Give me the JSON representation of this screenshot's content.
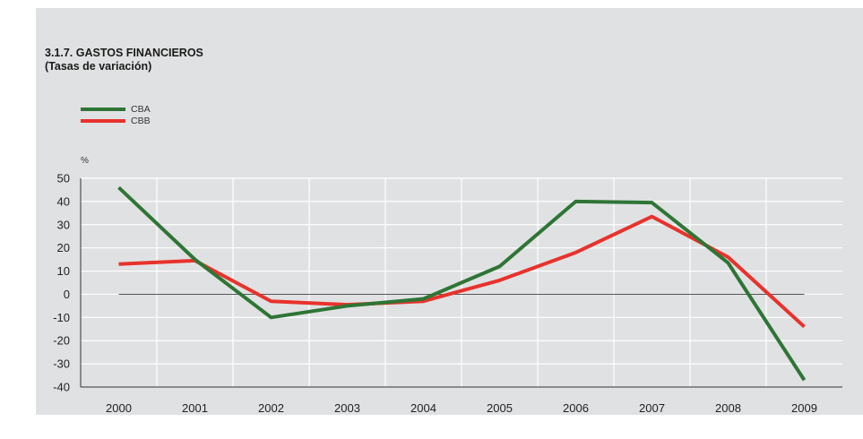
{
  "chart_data": {
    "type": "line",
    "title": "3.1.7. GASTOS FINANCIEROS",
    "subtitle": "(Tasas de variación)",
    "unit_label": "%",
    "x": [
      "2000",
      "2001",
      "2002",
      "2003",
      "2004",
      "2005",
      "2006",
      "2007",
      "2008",
      "2009"
    ],
    "ylim": [
      -40,
      50
    ],
    "yticks": [
      50,
      40,
      30,
      20,
      10,
      0,
      -10,
      -20,
      -30,
      -40
    ],
    "legend_position": "top-left",
    "grid": true,
    "series": [
      {
        "name": "CBA",
        "color": "#2e7536",
        "values": [
          46,
          15,
          -10,
          -5,
          -2,
          12,
          40,
          39.5,
          13.5,
          -37
        ]
      },
      {
        "name": "CBB",
        "color": "#e8322c",
        "values": [
          13,
          14.5,
          -3,
          -4.5,
          -3,
          6,
          18,
          33.5,
          16,
          -14
        ]
      }
    ]
  }
}
